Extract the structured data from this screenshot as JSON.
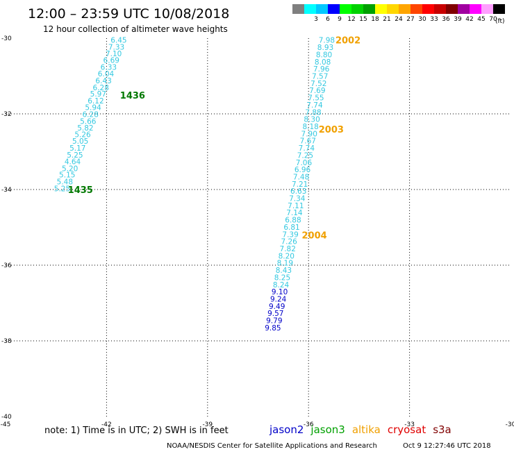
{
  "header": {
    "title": "12:00 – 23:59 UTC 10/08/2018",
    "subtitle": "12 hour collection of altimeter wave heights"
  },
  "legend": {
    "unit": "(ft)",
    "bins": [
      {
        "label": "",
        "color": "#7f7f7f"
      },
      {
        "label": "3",
        "color": "#00ffff"
      },
      {
        "label": "6",
        "color": "#00c8ff"
      },
      {
        "label": "9",
        "color": "#0000ff"
      },
      {
        "label": "12",
        "color": "#00ff00"
      },
      {
        "label": "15",
        "color": "#00d200"
      },
      {
        "label": "18",
        "color": "#00a000"
      },
      {
        "label": "21",
        "color": "#ffff00"
      },
      {
        "label": "24",
        "color": "#ffd700"
      },
      {
        "label": "27",
        "color": "#ffa500"
      },
      {
        "label": "30",
        "color": "#ff4500"
      },
      {
        "label": "33",
        "color": "#ff0000"
      },
      {
        "label": "36",
        "color": "#c80000"
      },
      {
        "label": "39",
        "color": "#800000"
      },
      {
        "label": "42",
        "color": "#a000a0"
      },
      {
        "label": "45",
        "color": "#ff00ff"
      },
      {
        "label": "70",
        "color": "#ff9eff"
      },
      {
        "label": "",
        "color": "#000000"
      }
    ]
  },
  "axes": {
    "x_labels": [
      "-45",
      "-42",
      "-39",
      "-36",
      "-33",
      "-30"
    ],
    "y_labels": [
      "-30",
      "-32",
      "-34",
      "-36",
      "-38",
      "-40"
    ],
    "lon_range": [
      -45,
      -30
    ],
    "lat_range": [
      -40,
      -30
    ]
  },
  "tracks": [
    {
      "id": "track-west",
      "color": "#33c8e0",
      "points": [
        {
          "lon": -41.88,
          "lat": -30.05,
          "value": "6.45"
        },
        {
          "lon": -41.95,
          "lat": -30.23,
          "value": "7.33"
        },
        {
          "lon": -42.03,
          "lat": -30.4,
          "value": "7.10"
        },
        {
          "lon": -42.1,
          "lat": -30.58,
          "value": "6.69"
        },
        {
          "lon": -42.18,
          "lat": -30.76,
          "value": "6.33"
        },
        {
          "lon": -42.26,
          "lat": -30.94,
          "value": "6.04"
        },
        {
          "lon": -42.33,
          "lat": -31.12,
          "value": "6.43"
        },
        {
          "lon": -42.41,
          "lat": -31.3,
          "value": "6.28"
        },
        {
          "lon": -42.49,
          "lat": -31.47,
          "value": "5.97"
        },
        {
          "lon": -42.56,
          "lat": -31.65,
          "value": "6.12"
        },
        {
          "lon": -42.64,
          "lat": -31.83,
          "value": "5.94"
        },
        {
          "lon": -42.72,
          "lat": -32.01,
          "value": "6.28"
        },
        {
          "lon": -42.79,
          "lat": -32.19,
          "value": "5.66"
        },
        {
          "lon": -42.87,
          "lat": -32.37,
          "value": "5.82"
        },
        {
          "lon": -42.95,
          "lat": -32.54,
          "value": "5.26"
        },
        {
          "lon": -43.02,
          "lat": -32.72,
          "value": "5.05"
        },
        {
          "lon": -43.1,
          "lat": -32.9,
          "value": "5.17"
        },
        {
          "lon": -43.18,
          "lat": -33.08,
          "value": "5.25"
        },
        {
          "lon": -43.25,
          "lat": -33.26,
          "value": "4.64"
        },
        {
          "lon": -43.33,
          "lat": -33.44,
          "value": "5.20"
        },
        {
          "lon": -43.41,
          "lat": -33.61,
          "value": "5.15"
        },
        {
          "lon": -43.48,
          "lat": -33.79,
          "value": "5.48"
        },
        {
          "lon": -43.56,
          "lat": -33.97,
          "value": "5.25"
        }
      ]
    },
    {
      "id": "track-east-upper",
      "color": "#33c8e0",
      "points": [
        {
          "lon": -35.7,
          "lat": -30.05,
          "value": "7.98"
        },
        {
          "lon": -35.74,
          "lat": -30.24,
          "value": "8.93"
        },
        {
          "lon": -35.78,
          "lat": -30.43,
          "value": "8.80"
        },
        {
          "lon": -35.82,
          "lat": -30.62,
          "value": "8.08"
        },
        {
          "lon": -35.86,
          "lat": -30.81,
          "value": "7.96"
        },
        {
          "lon": -35.9,
          "lat": -31.0,
          "value": "7.57"
        },
        {
          "lon": -35.94,
          "lat": -31.19,
          "value": "7.52"
        },
        {
          "lon": -35.98,
          "lat": -31.38,
          "value": "7.69"
        },
        {
          "lon": -36.02,
          "lat": -31.57,
          "value": "7.55"
        },
        {
          "lon": -36.06,
          "lat": -31.76,
          "value": "7.74"
        },
        {
          "lon": -36.1,
          "lat": -31.95,
          "value": "7.88"
        },
        {
          "lon": -36.14,
          "lat": -32.14,
          "value": "8.30"
        },
        {
          "lon": -36.18,
          "lat": -32.33,
          "value": "8.18"
        },
        {
          "lon": -36.22,
          "lat": -32.52,
          "value": "7.90"
        },
        {
          "lon": -36.26,
          "lat": -32.71,
          "value": "7.67"
        },
        {
          "lon": -36.3,
          "lat": -32.9,
          "value": "7.74"
        },
        {
          "lon": -36.34,
          "lat": -33.09,
          "value": "7.25"
        },
        {
          "lon": -36.38,
          "lat": -33.28,
          "value": "7.06"
        },
        {
          "lon": -36.42,
          "lat": -33.47,
          "value": "6.96"
        },
        {
          "lon": -36.46,
          "lat": -33.66,
          "value": "7.48"
        },
        {
          "lon": -36.5,
          "lat": -33.85,
          "value": "7.21"
        },
        {
          "lon": -36.54,
          "lat": -34.04,
          "value": "6.63"
        },
        {
          "lon": -36.58,
          "lat": -34.23,
          "value": "7.34"
        },
        {
          "lon": -36.62,
          "lat": -34.42,
          "value": "7.11"
        },
        {
          "lon": -36.66,
          "lat": -34.61,
          "value": "7.14"
        },
        {
          "lon": -36.7,
          "lat": -34.8,
          "value": "6.88"
        },
        {
          "lon": -36.74,
          "lat": -34.99,
          "value": "6.81"
        },
        {
          "lon": -36.78,
          "lat": -35.18,
          "value": "7.39"
        },
        {
          "lon": -36.82,
          "lat": -35.37,
          "value": "7.26"
        },
        {
          "lon": -36.86,
          "lat": -35.56,
          "value": "7.82"
        },
        {
          "lon": -36.9,
          "lat": -35.75,
          "value": "8.20"
        },
        {
          "lon": -36.94,
          "lat": -35.94,
          "value": "8.19"
        },
        {
          "lon": -36.98,
          "lat": -36.13,
          "value": "8.43"
        },
        {
          "lon": -37.02,
          "lat": -36.32,
          "value": "8.25"
        },
        {
          "lon": -37.06,
          "lat": -36.51,
          "value": "8.24"
        }
      ]
    },
    {
      "id": "track-east-lower",
      "color": "#0000c8",
      "points": [
        {
          "lon": -37.1,
          "lat": -36.7,
          "value": "9.10"
        },
        {
          "lon": -37.14,
          "lat": -36.89,
          "value": "9.24"
        },
        {
          "lon": -37.18,
          "lat": -37.08,
          "value": "9.49"
        },
        {
          "lon": -37.22,
          "lat": -37.27,
          "value": "9.57"
        },
        {
          "lon": -37.26,
          "lat": -37.46,
          "value": "9.79"
        },
        {
          "lon": -37.3,
          "lat": -37.65,
          "value": "9.85"
        }
      ]
    }
  ],
  "time_labels": [
    {
      "text": "1436",
      "lon": -41.6,
      "lat": -31.5,
      "color": "#007800"
    },
    {
      "text": "1435",
      "lon": -43.15,
      "lat": -34.0,
      "color": "#007800"
    },
    {
      "text": "2002",
      "lon": -35.2,
      "lat": -30.05,
      "color": "#f0a000"
    },
    {
      "text": "2003",
      "lon": -35.7,
      "lat": -32.4,
      "color": "#f0a000"
    },
    {
      "text": "2004",
      "lon": -36.2,
      "lat": -35.2,
      "color": "#f0a000"
    }
  ],
  "footer": {
    "note": "note:  1) Time is in UTC;  2) SWH is in feet",
    "satellites": [
      {
        "name": "jason2",
        "color": "#0000c8"
      },
      {
        "name": "jason3",
        "color": "#00a000"
      },
      {
        "name": "altika",
        "color": "#f0a000"
      },
      {
        "name": "cryosat",
        "color": "#e00000"
      },
      {
        "name": "s3a",
        "color": "#800000"
      }
    ],
    "credit": "NOAA/NESDIS Center for Satellite Applications and Research",
    "timestamp": "Oct  9 12:27:46 UTC 2018"
  }
}
